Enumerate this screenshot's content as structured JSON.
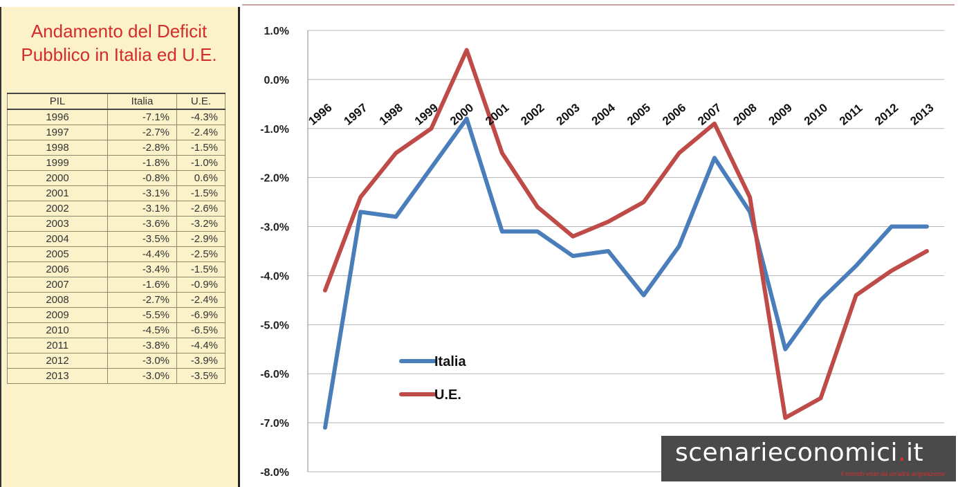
{
  "table": {
    "title_line1": "Andamento del Deficit",
    "title_line2": "Pubblico in Italia ed U.E.",
    "headers": [
      "PIL",
      "Italia",
      "U.E."
    ],
    "rows": [
      [
        "1996",
        "-7.1%",
        "-4.3%"
      ],
      [
        "1997",
        "-2.7%",
        "-2.4%"
      ],
      [
        "1998",
        "-2.8%",
        "-1.5%"
      ],
      [
        "1999",
        "-1.8%",
        "-1.0%"
      ],
      [
        "2000",
        "-0.8%",
        "0.6%"
      ],
      [
        "2001",
        "-3.1%",
        "-1.5%"
      ],
      [
        "2002",
        "-3.1%",
        "-2.6%"
      ],
      [
        "2003",
        "-3.6%",
        "-3.2%"
      ],
      [
        "2004",
        "-3.5%",
        "-2.9%"
      ],
      [
        "2005",
        "-4.4%",
        "-2.5%"
      ],
      [
        "2006",
        "-3.4%",
        "-1.5%"
      ],
      [
        "2007",
        "-1.6%",
        "-0.9%"
      ],
      [
        "2008",
        "-2.7%",
        "-2.4%"
      ],
      [
        "2009",
        "-5.5%",
        "-6.9%"
      ],
      [
        "2010",
        "-4.5%",
        "-6.5%"
      ],
      [
        "2011",
        "-3.8%",
        "-4.4%"
      ],
      [
        "2012",
        "-3.0%",
        "-3.9%"
      ],
      [
        "2013",
        "-3.0%",
        "-3.5%"
      ]
    ]
  },
  "chart_data": {
    "type": "line",
    "x": [
      "1996",
      "1997",
      "1998",
      "1999",
      "2000",
      "2001",
      "2002",
      "2003",
      "2004",
      "2005",
      "2006",
      "2007",
      "2008",
      "2009",
      "2010",
      "2011",
      "2012",
      "2013"
    ],
    "series": [
      {
        "name": "Italia",
        "color": "#4a7ebb",
        "values": [
          -7.1,
          -2.7,
          -2.8,
          -1.8,
          -0.8,
          -3.1,
          -3.1,
          -3.6,
          -3.5,
          -4.4,
          -3.4,
          -1.6,
          -2.7,
          -5.5,
          -4.5,
          -3.8,
          -3.0,
          -3.0
        ]
      },
      {
        "name": "U.E.",
        "color": "#be4b48",
        "values": [
          -4.3,
          -2.4,
          -1.5,
          -1.0,
          0.6,
          -1.5,
          -2.6,
          -3.2,
          -2.9,
          -2.5,
          -1.5,
          -0.9,
          -2.4,
          -6.9,
          -6.5,
          -4.4,
          -3.9,
          -3.5
        ]
      }
    ],
    "ylim": [
      -8,
      1
    ],
    "yticks": [
      "1.0%",
      "0.0%",
      "-1.0%",
      "-2.0%",
      "-3.0%",
      "-4.0%",
      "-5.0%",
      "-6.0%",
      "-7.0%",
      "-8.0%"
    ],
    "x_labels_at": -1.0,
    "grid": "horizontal",
    "legend": "lower-left inside"
  },
  "logo": {
    "name_main": "scenarieconomici",
    "name_dot": ".",
    "name_tld": "it",
    "tagline": "Il mondo visto da un'altra angolazione"
  }
}
